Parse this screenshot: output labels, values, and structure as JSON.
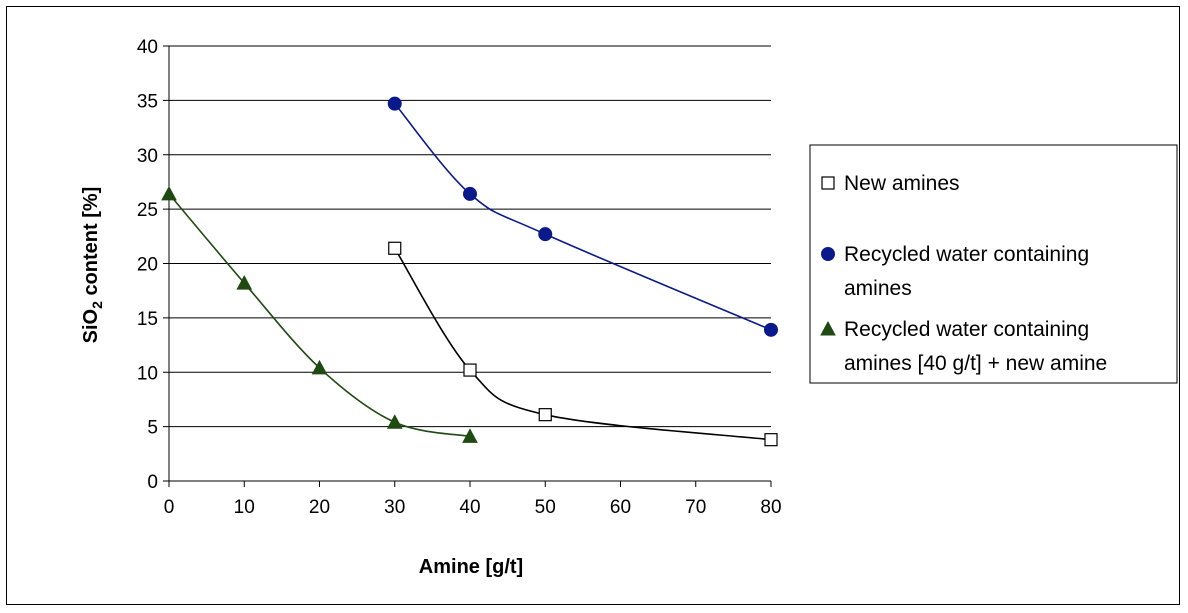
{
  "chart_data": {
    "type": "scatter",
    "xlabel": "Amine [g/t]",
    "ylabel_parts": [
      "SiO",
      "2",
      " content [%]"
    ],
    "xlim": [
      0,
      80
    ],
    "ylim": [
      0,
      40
    ],
    "xticks": [
      "0",
      "10",
      "20",
      "30",
      "40",
      "50",
      "60",
      "70",
      "80"
    ],
    "yticks": [
      "0",
      "5",
      "10",
      "15",
      "20",
      "25",
      "30",
      "35",
      "40"
    ],
    "grid": "horizontal",
    "legend_position": "right",
    "series": [
      {
        "name": "New amines",
        "label_lines": [
          "New amines"
        ],
        "marker": "square",
        "color": "#000000",
        "x": [
          30,
          40,
          50,
          80
        ],
        "y": [
          21.4,
          10.2,
          6.1,
          3.8
        ]
      },
      {
        "name": "Recycled water containing amines",
        "label_lines": [
          "Recycled water containing",
          "amines"
        ],
        "marker": "circle",
        "color": "#0a1a8a",
        "x": [
          30,
          40,
          50,
          80
        ],
        "y": [
          34.7,
          26.4,
          22.7,
          13.9
        ]
      },
      {
        "name": "Recycled water containing amines [40 g/t] + new amine",
        "label_lines": [
          "Recycled water containing",
          "amines [40 g/t] + new amine"
        ],
        "marker": "triangle",
        "color": "#1f4a12",
        "x": [
          0,
          10,
          20,
          30,
          40
        ],
        "y": [
          26.4,
          18.2,
          10.4,
          5.4,
          4.1
        ]
      }
    ]
  }
}
